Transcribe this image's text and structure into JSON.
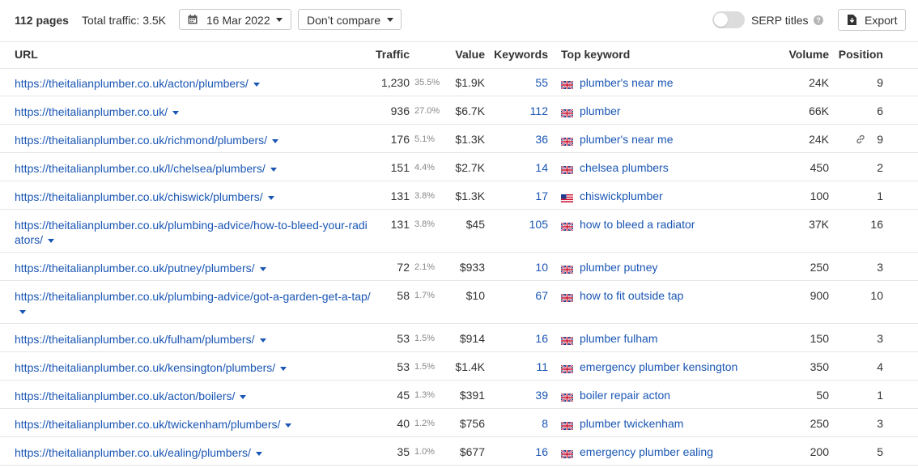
{
  "toolbar": {
    "pages": "112 pages",
    "total_traffic": "Total traffic: 3.5K",
    "date": "16 Mar 2022",
    "compare": "Don’t compare",
    "serp_titles": "SERP titles",
    "help": "?",
    "export": "Export"
  },
  "colors": {
    "link": "#1a56b4",
    "muted": "#888888",
    "border": "#e6e6e6"
  },
  "columns": {
    "url": "URL",
    "traffic": "Traffic",
    "value": "Value",
    "keywords": "Keywords",
    "top_keyword": "Top keyword",
    "volume": "Volume",
    "position": "Position"
  },
  "rows": [
    {
      "url": "https://theitalianplumber.co.uk/acton/plumbers/",
      "traffic": "1,230",
      "pct": "35.5%",
      "value": "$1.9K",
      "keywords": "55",
      "flag": "uk",
      "top_keyword": "plumber's near me",
      "volume": "24K",
      "position": "9",
      "link": false
    },
    {
      "url": "https://theitalianplumber.co.uk/",
      "traffic": "936",
      "pct": "27.0%",
      "value": "$6.7K",
      "keywords": "112",
      "flag": "uk",
      "top_keyword": "plumber",
      "volume": "66K",
      "position": "6",
      "link": false
    },
    {
      "url": "https://theitalianplumber.co.uk/richmond/plumbers/",
      "traffic": "176",
      "pct": "5.1%",
      "value": "$1.3K",
      "keywords": "36",
      "flag": "uk",
      "top_keyword": "plumber's near me",
      "volume": "24K",
      "position": "9",
      "link": true
    },
    {
      "url": "https://theitalianplumber.co.uk/l/chelsea/plumbers/",
      "traffic": "151",
      "pct": "4.4%",
      "value": "$2.7K",
      "keywords": "14",
      "flag": "uk",
      "top_keyword": "chelsea plumbers",
      "volume": "450",
      "position": "2",
      "link": false
    },
    {
      "url": "https://theitalianplumber.co.uk/chiswick/plumbers/",
      "traffic": "131",
      "pct": "3.8%",
      "value": "$1.3K",
      "keywords": "17",
      "flag": "us",
      "top_keyword": "chiswickplumber",
      "volume": "100",
      "position": "1",
      "link": false
    },
    {
      "url": "https://theitalianplumber.co.uk/plumbing-advice/how-to-bleed-your-radiators/",
      "traffic": "131",
      "pct": "3.8%",
      "value": "$45",
      "keywords": "105",
      "flag": "uk",
      "top_keyword": "how to bleed a radiator",
      "volume": "37K",
      "position": "16",
      "link": false
    },
    {
      "url": "https://theitalianplumber.co.uk/putney/plumbers/",
      "traffic": "72",
      "pct": "2.1%",
      "value": "$933",
      "keywords": "10",
      "flag": "uk",
      "top_keyword": "plumber putney",
      "volume": "250",
      "position": "3",
      "link": false
    },
    {
      "url": "https://theitalianplumber.co.uk/plumbing-advice/got-a-garden-get-a-tap/",
      "traffic": "58",
      "pct": "1.7%",
      "value": "$10",
      "keywords": "67",
      "flag": "uk",
      "top_keyword": "how to fit outside tap",
      "volume": "900",
      "position": "10",
      "link": false
    },
    {
      "url": "https://theitalianplumber.co.uk/fulham/plumbers/",
      "traffic": "53",
      "pct": "1.5%",
      "value": "$914",
      "keywords": "16",
      "flag": "uk",
      "top_keyword": "plumber fulham",
      "volume": "150",
      "position": "3",
      "link": false
    },
    {
      "url": "https://theitalianplumber.co.uk/kensington/plumbers/",
      "traffic": "53",
      "pct": "1.5%",
      "value": "$1.4K",
      "keywords": "11",
      "flag": "uk",
      "top_keyword": "emergency plumber kensington",
      "volume": "350",
      "position": "4",
      "link": false
    },
    {
      "url": "https://theitalianplumber.co.uk/acton/boilers/",
      "traffic": "45",
      "pct": "1.3%",
      "value": "$391",
      "keywords": "39",
      "flag": "uk",
      "top_keyword": "boiler repair acton",
      "volume": "50",
      "position": "1",
      "link": false
    },
    {
      "url": "https://theitalianplumber.co.uk/twickenham/plumbers/",
      "traffic": "40",
      "pct": "1.2%",
      "value": "$756",
      "keywords": "8",
      "flag": "uk",
      "top_keyword": "plumber twickenham",
      "volume": "250",
      "position": "3",
      "link": false
    },
    {
      "url": "https://theitalianplumber.co.uk/ealing/plumbers/",
      "traffic": "35",
      "pct": "1.0%",
      "value": "$677",
      "keywords": "16",
      "flag": "uk",
      "top_keyword": "emergency plumber ealing",
      "volume": "200",
      "position": "5",
      "link": false
    }
  ]
}
